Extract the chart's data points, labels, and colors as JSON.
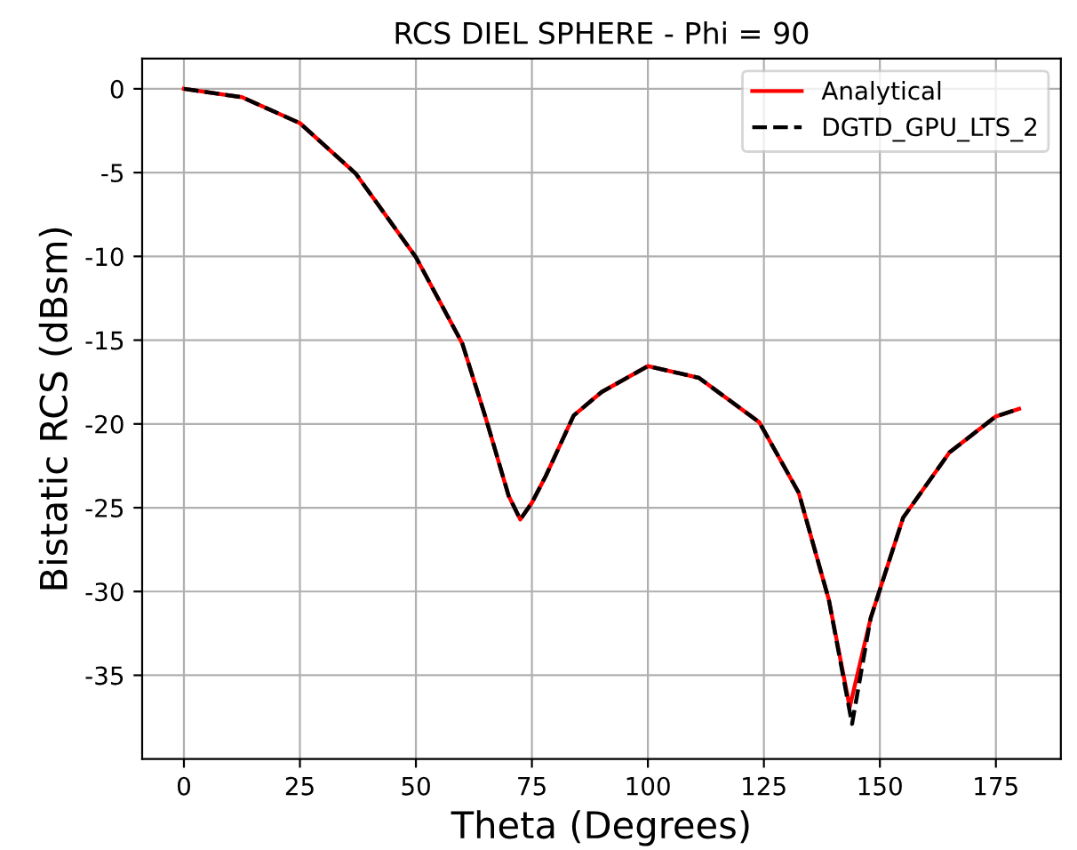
{
  "chart_data": {
    "type": "line",
    "title": "RCS DIEL SPHERE - Phi = 90",
    "xlabel": "Theta (Degrees)",
    "ylabel": "Bistatic RCS (dBsm)",
    "xlim": [
      -9,
      189
    ],
    "ylim": [
      -40,
      1.8
    ],
    "xticks": [
      0,
      25,
      50,
      75,
      100,
      125,
      150,
      175
    ],
    "yticks": [
      -35,
      -30,
      -25,
      -20,
      -15,
      -10,
      -5,
      0
    ],
    "grid": true,
    "legend": "top right",
    "series": [
      {
        "name": "Analytical",
        "color": "#ff0000",
        "line_style": "solid",
        "x": [
          0,
          12.5,
          25,
          37,
          50,
          60,
          65,
          70,
          72.5,
          75,
          78,
          84,
          90,
          100,
          111,
          124,
          132.5,
          139,
          143.5,
          148,
          155,
          165,
          175,
          180
        ],
        "values": [
          0,
          -0.5,
          -2.05,
          -5.05,
          -10.05,
          -15.2,
          -19.6,
          -24.3,
          -25.7,
          -24.7,
          -23.1,
          -19.5,
          -18.1,
          -16.55,
          -17.25,
          -19.9,
          -24.1,
          -30.5,
          -36.9,
          -31.6,
          -25.6,
          -21.7,
          -19.55,
          -19.1
        ]
      },
      {
        "name": "DGTD_GPU_LTS_2",
        "color": "#000000",
        "line_style": "dashed",
        "x": [
          0,
          12.5,
          25,
          37,
          50,
          60,
          65,
          70,
          72.5,
          75,
          78,
          84,
          90,
          100,
          111,
          124,
          132.5,
          139,
          144,
          148,
          155,
          165,
          175,
          180
        ],
        "values": [
          0,
          -0.5,
          -2.05,
          -5.05,
          -10.05,
          -15.2,
          -19.6,
          -24.3,
          -25.7,
          -24.7,
          -23.1,
          -19.5,
          -18.1,
          -16.55,
          -17.25,
          -19.9,
          -24.1,
          -30.5,
          -37.9,
          -31.6,
          -25.6,
          -21.7,
          -19.55,
          -19.1
        ]
      }
    ]
  }
}
